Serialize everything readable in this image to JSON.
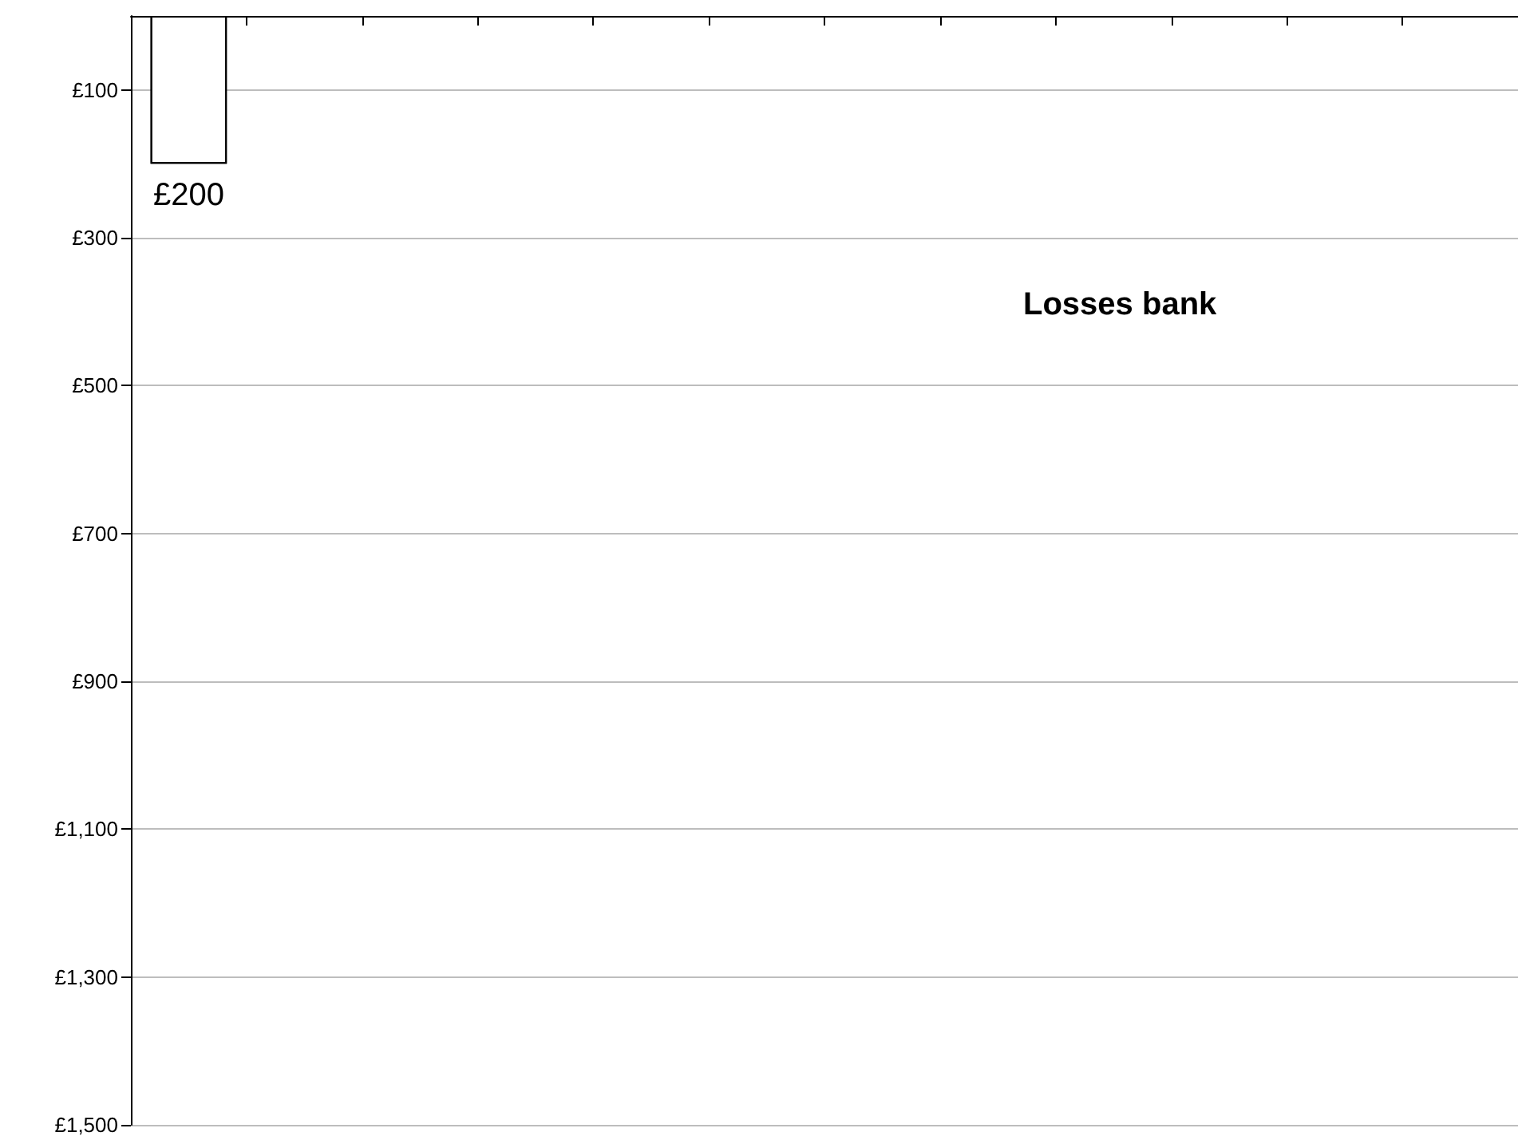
{
  "chart_data": {
    "type": "bar",
    "title": "Losses bank",
    "categories": [
      null,
      null,
      null,
      null,
      null,
      null,
      null,
      null,
      null,
      null,
      null,
      null
    ],
    "values": [
      200,
      null,
      null,
      null,
      null,
      null,
      null,
      null,
      null,
      null,
      null,
      null
    ],
    "value_labels": [
      "£200",
      null,
      null,
      null,
      null,
      null,
      null,
      null,
      null,
      null,
      null,
      null
    ],
    "color": "#000000",
    "ylim": [
      1500,
      0
    ],
    "yticks": [
      {
        "value": 100,
        "label": "£100"
      },
      {
        "value": 300,
        "label": "£300"
      },
      {
        "value": 500,
        "label": "£500"
      },
      {
        "value": 700,
        "label": "£700"
      },
      {
        "value": 900,
        "label": "£900"
      },
      {
        "value": 1100,
        "label": "£1,100"
      },
      {
        "value": 1300,
        "label": "£1,300"
      },
      {
        "value": 1500,
        "label": "£1,500"
      }
    ],
    "grid": "y",
    "tick_labels": "y"
  }
}
